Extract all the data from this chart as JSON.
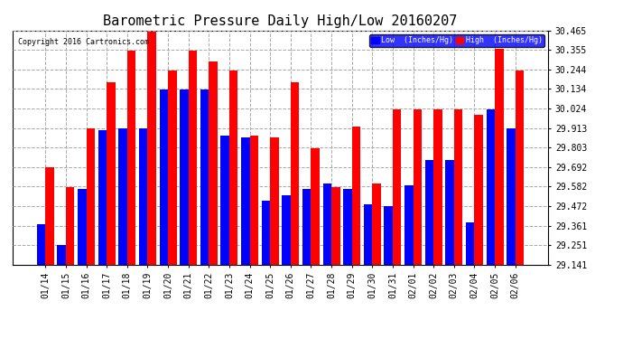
{
  "title": "Barometric Pressure Daily High/Low 20160207",
  "copyright": "Copyright 2016 Cartronics.com",
  "legend_low": "Low  (Inches/Hg)",
  "legend_high": "High  (Inches/Hg)",
  "dates": [
    "01/14",
    "01/15",
    "01/16",
    "01/17",
    "01/18",
    "01/19",
    "01/20",
    "01/21",
    "01/22",
    "01/23",
    "01/24",
    "01/25",
    "01/26",
    "01/27",
    "01/28",
    "01/29",
    "01/30",
    "01/31",
    "02/01",
    "02/02",
    "02/03",
    "02/04",
    "02/05",
    "02/06"
  ],
  "low": [
    29.37,
    29.25,
    29.57,
    29.9,
    29.91,
    29.91,
    30.13,
    30.13,
    30.13,
    29.87,
    29.86,
    29.5,
    29.53,
    29.57,
    29.6,
    29.57,
    29.48,
    29.47,
    29.59,
    29.73,
    29.73,
    29.38,
    30.02,
    29.91
  ],
  "high": [
    29.69,
    29.58,
    29.91,
    30.17,
    30.35,
    30.46,
    30.24,
    30.35,
    30.29,
    30.24,
    29.87,
    29.86,
    30.17,
    29.8,
    29.58,
    29.92,
    29.6,
    30.02,
    30.02,
    30.02,
    30.02,
    29.99,
    30.36,
    30.24
  ],
  "low_color": "#0000FF",
  "high_color": "#FF0000",
  "bg_color": "#FFFFFF",
  "plot_bg_color": "#FFFFFF",
  "grid_color": "#AAAAAA",
  "ymin": 29.141,
  "ymax": 30.465,
  "yticks": [
    29.141,
    29.251,
    29.361,
    29.472,
    29.582,
    29.692,
    29.803,
    29.913,
    30.024,
    30.134,
    30.244,
    30.355,
    30.465
  ],
  "title_fontsize": 11,
  "axis_fontsize": 7,
  "bar_width": 0.42
}
